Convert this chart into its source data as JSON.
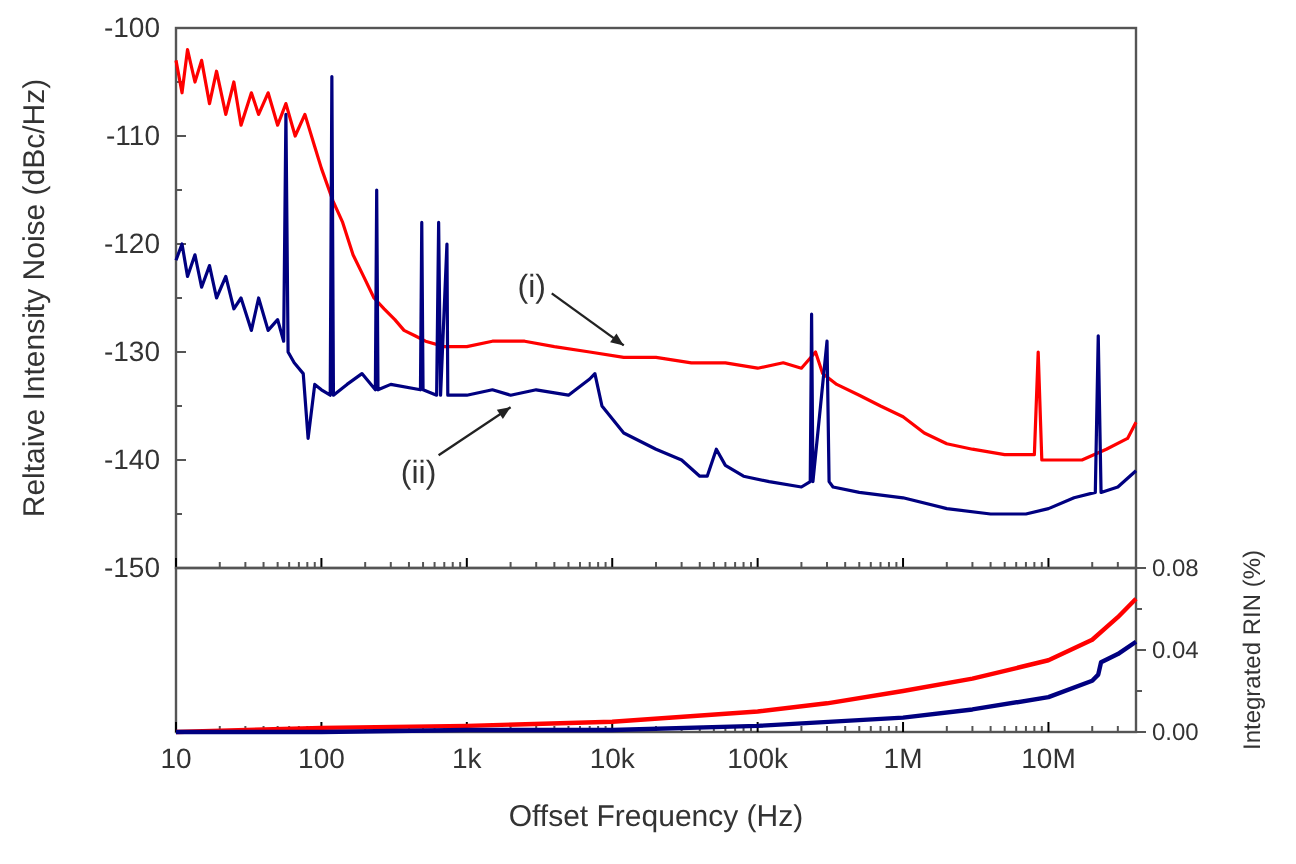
{
  "chart_data": [
    {
      "type": "line",
      "ylabel": "Reltaive Intensity Noise (dBc/Hz)",
      "log": "x",
      "xlim": [
        10,
        40000000
      ],
      "xticks": [
        10,
        100,
        1000,
        10000,
        100000,
        1000000,
        10000000
      ],
      "ylim": [
        -150,
        -100
      ],
      "yticks": [
        -150,
        -140,
        -130,
        -120,
        -110,
        -100
      ],
      "tick_labels": "y",
      "annotations": [
        {
          "text": "(i)",
          "x": 12000,
          "y": -130.5
        },
        {
          "text": "(ii)",
          "x": 2000,
          "y": -134
        }
      ],
      "series": [
        {
          "color": "#ff0000",
          "x": [
            10,
            11,
            12,
            13.5,
            15,
            17,
            19,
            22,
            25,
            28,
            33,
            37,
            43,
            50,
            57,
            66,
            77,
            90,
            100,
            120,
            140,
            165,
            195,
            230,
            270,
            320,
            370,
            440,
            520,
            700,
            1000,
            1500,
            2500,
            4000,
            7000,
            12000,
            20000,
            35000,
            60000,
            100000,
            150000,
            200000,
            250000,
            280000,
            350000,
            500000,
            700000,
            1000000,
            1400000,
            2000000,
            3000000,
            5000000,
            7000000,
            8000000,
            8500000,
            9000000,
            12000000,
            17000000,
            25000000,
            35000000,
            40000000
          ],
          "values": [
            -103,
            -106,
            -102,
            -105,
            -103,
            -107,
            -104,
            -108,
            -105,
            -109,
            -106,
            -108,
            -106,
            -109,
            -107,
            -110,
            -108,
            -111,
            -113,
            -116,
            -118,
            -121,
            -123,
            -125,
            -126,
            -127,
            -128,
            -128.5,
            -129,
            -129.5,
            -129.5,
            -129,
            -129,
            -129.5,
            -130,
            -130.5,
            -130.5,
            -131,
            -131,
            -131.5,
            -131,
            -131.5,
            -130,
            -132,
            -133,
            -134,
            -135,
            -136,
            -137.5,
            -138.5,
            -139,
            -139.5,
            -139.5,
            -139.5,
            -130,
            -140,
            -140,
            -140,
            -139,
            -138,
            -136.5
          ]
        },
        {
          "color": "#000080",
          "x": [
            10,
            11,
            12,
            13.5,
            15,
            17,
            19,
            22,
            25,
            28,
            33,
            37,
            43,
            50,
            55,
            57,
            59,
            65,
            75,
            81,
            90,
            100,
            115,
            118,
            121,
            150,
            190,
            235,
            240,
            245,
            300,
            480,
            490,
            500,
            620,
            640,
            660,
            730,
            740,
            1000,
            1500,
            2000,
            3000,
            5000,
            7000,
            7600,
            8500,
            12000,
            20000,
            30000,
            40000,
            45000,
            52000,
            60000,
            80000,
            120000,
            200000,
            230000,
            235000,
            240000,
            300000,
            310000,
            330000,
            500000,
            1000000,
            2000000,
            4000000,
            7000000,
            10000000,
            15000000,
            21000000,
            22000000,
            23000000,
            30000000,
            40000000
          ],
          "values": [
            -121.5,
            -120,
            -123,
            -121,
            -124,
            -122,
            -125,
            -123,
            -126,
            -125,
            -128,
            -125,
            -128,
            -127,
            -129,
            -108,
            -130,
            -131,
            -132,
            -138,
            -133,
            -133.5,
            -134,
            -104.5,
            -134,
            -133,
            -132,
            -133.5,
            -115,
            -133.5,
            -133,
            -133.5,
            -118,
            -133.5,
            -134,
            -118,
            -134,
            -120,
            -134,
            -134,
            -133.5,
            -134,
            -133.5,
            -134,
            -132.5,
            -132,
            -135,
            -137.5,
            -139,
            -140,
            -141.5,
            -141.5,
            -139,
            -140.5,
            -141.5,
            -142,
            -142.5,
            -142,
            -126.5,
            -142,
            -129,
            -142,
            -142.5,
            -143,
            -143.5,
            -144.5,
            -145,
            -145,
            -144.5,
            -143.5,
            -143,
            -128.5,
            -143,
            -142.5,
            -141
          ]
        }
      ]
    },
    {
      "type": "line",
      "xlabel": "Offset Frequency (Hz)",
      "y2label": "Integrated RIN (%)",
      "log": "x",
      "xlim": [
        10,
        40000000
      ],
      "xticks": [
        {
          "value": 10,
          "label": "10"
        },
        {
          "value": 100,
          "label": "100"
        },
        {
          "value": 1000,
          "label": "1k"
        },
        {
          "value": 10000,
          "label": "10k"
        },
        {
          "value": 100000,
          "label": "100k"
        },
        {
          "value": 1000000,
          "label": "1M"
        },
        {
          "value": 10000000,
          "label": "10M"
        }
      ],
      "y2lim": [
        0,
        0.08
      ],
      "y2ticks": [
        {
          "value": 0,
          "label": "0.00"
        },
        {
          "value": 0.04,
          "label": "0.04"
        },
        {
          "value": 0.08,
          "label": "0.08"
        }
      ],
      "series": [
        {
          "color": "#ff0000",
          "axis": "y2",
          "x": [
            10,
            100,
            1000,
            10000,
            100000,
            300000,
            1000000,
            3000000,
            10000000,
            20000000,
            30000000,
            40000000
          ],
          "values": [
            0,
            0.002,
            0.003,
            0.005,
            0.01,
            0.014,
            0.02,
            0.026,
            0.035,
            0.045,
            0.056,
            0.065
          ]
        },
        {
          "color": "#000080",
          "axis": "y2",
          "x": [
            10,
            100,
            1000,
            10000,
            100000,
            1000000,
            3000000,
            10000000,
            20000000,
            22000000,
            23000000,
            30000000,
            40000000
          ],
          "values": [
            0,
            0,
            0.001,
            0.001,
            0.003,
            0.007,
            0.011,
            0.017,
            0.025,
            0.028,
            0.034,
            0.038,
            0.044
          ]
        }
      ]
    }
  ]
}
